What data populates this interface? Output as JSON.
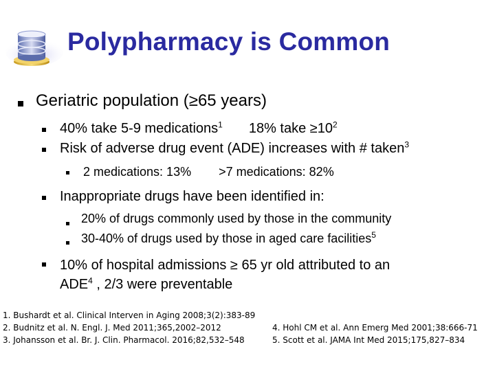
{
  "title": "Polypharmacy is Common",
  "logo_icon": "pill-stack-icon",
  "bullet_l1": "Geriatric population (≥65 years)",
  "l2_1": {
    "a": "40% take 5-9 medications",
    "a_sup": "1",
    "b": "18% take ≥10",
    "b_sup": "2"
  },
  "l2_2": {
    "text": "Risk of adverse drug event (ADE) increases with # taken",
    "sup": "3"
  },
  "l3_1": {
    "a": "2 medications: 13%",
    "b": ">7 medications: 82%"
  },
  "l2_3": {
    "text": "Inappropriate drugs have been identified in:"
  },
  "l3_2": {
    "text": "20% of drugs commonly used by those in the community"
  },
  "l3_3": {
    "text": "30-40% of drugs used by those in aged care facilities",
    "sup": "5"
  },
  "l2_4": {
    "line1": "10% of hospital admissions ≥ 65 yr old attributed to an",
    "line2a": "ADE",
    "sup": "4",
    "line2b": " , 2/3 were preventable"
  },
  "refs_left": [
    "1. Bushardt et al. Clinical Interven in Aging 2008;3(2):383-89",
    "2. Budnitz et al.  N. Engl. J. Med 2011;365,2002–2012",
    "3. Johansson et al. Br. J. Clin. Pharmacol. 2016;82,532–548"
  ],
  "refs_right": [
    "4. Hohl CM et al. Ann Emerg Med 2001;38:666-71",
    "5. Scott  et al. JAMA Int Med 2015;175,827–834"
  ]
}
